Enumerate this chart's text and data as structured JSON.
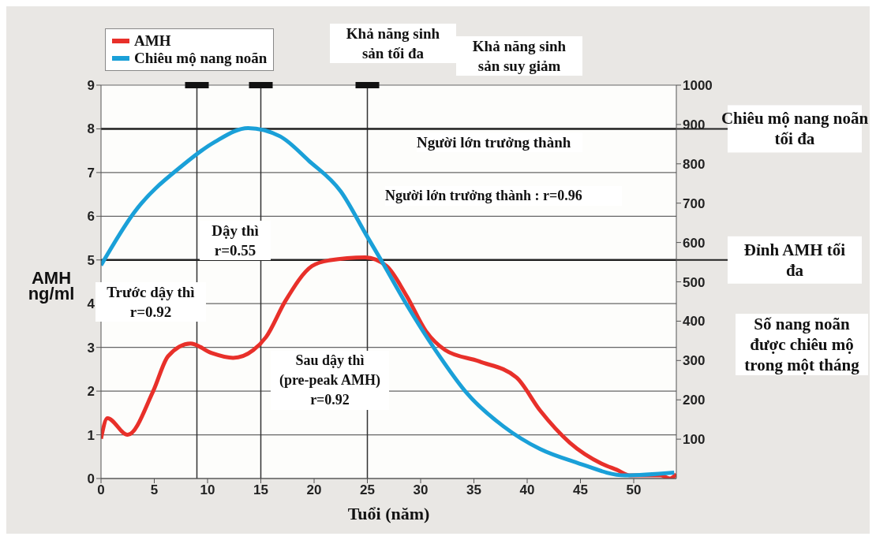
{
  "chart_data": {
    "type": "line",
    "xlabel": "Tuổi (năm)",
    "ylabel": "AMH ng/ml",
    "y2label": "Số nang noãn được chiêu mộ trong một tháng",
    "xlim": [
      0,
      54
    ],
    "xticks": [
      0,
      5,
      10,
      15,
      20,
      25,
      30,
      35,
      40,
      45,
      50
    ],
    "ylim": [
      0,
      9
    ],
    "yticks": [
      0,
      1,
      2,
      3,
      4,
      5,
      6,
      7,
      8,
      9
    ],
    "y2lim": [
      0,
      1000
    ],
    "y2ticks": [
      100,
      200,
      300,
      400,
      500,
      600,
      700,
      800,
      900,
      1000
    ],
    "grid": "y",
    "legend": "top left",
    "marker": "none",
    "line_style": "solid",
    "series": [
      {
        "name": "AMH",
        "color": "#e8302a",
        "x": [
          0,
          0.6,
          2.5,
          4.9,
          6.3,
          8.4,
          10.4,
          12.4,
          14.3,
          15.5,
          17.3,
          19.8,
          21.4,
          24.8,
          26.8,
          28.7,
          30.5,
          32.3,
          35.5,
          39,
          41.2,
          44,
          47,
          48.4,
          49.7,
          52.5,
          53.4,
          54
        ],
        "values": [
          0.91,
          1.38,
          1.0,
          2.0,
          2.8,
          3.09,
          2.87,
          2.76,
          2.94,
          3.24,
          4.06,
          4.86,
          4.99,
          5.06,
          4.86,
          4.17,
          3.37,
          2.94,
          2.68,
          2.31,
          1.56,
          0.82,
          0.34,
          0.2,
          0.07,
          0.07,
          0,
          0.1
        ]
      },
      {
        "name": "Chiêu mộ nang noãn",
        "color": "#1aa0d8",
        "axis": "y2",
        "x": [
          0,
          3.1,
          7.7,
          10.7,
          13.8,
          16.8,
          19.5,
          22.5,
          24.9,
          26.4,
          28.6,
          31.4,
          34.4,
          37.8,
          41.2,
          44.7,
          49.2,
          53.8
        ],
        "values": [
          542,
          676,
          797,
          856,
          891,
          870,
          808,
          730,
          619,
          550,
          446,
          326,
          215,
          132,
          75,
          40,
          8,
          15
        ]
      }
    ],
    "ref_lines": [
      {
        "axis": "x",
        "value": 9
      },
      {
        "axis": "x",
        "value": 15
      },
      {
        "axis": "x",
        "value": 25
      },
      {
        "axis": "y",
        "value": 8,
        "label": "Chiêu mộ nang noãn tối đa"
      },
      {
        "axis": "y",
        "value": 5,
        "label": "Đỉnh AMH tối đa"
      }
    ],
    "annotations": [
      "Khả năng sinh\nsản tối đa",
      "Khả năng sinh\nsản suy giảm",
      "Người lớn trưởng thành",
      "Người lớn trưởng thành : r=0.96",
      "Dậy thì\nr=0.55",
      "Trước dậy thì\nr=0.92",
      "Sau dậy thì\n(pre-peak AMH)\nr=0.92"
    ]
  }
}
